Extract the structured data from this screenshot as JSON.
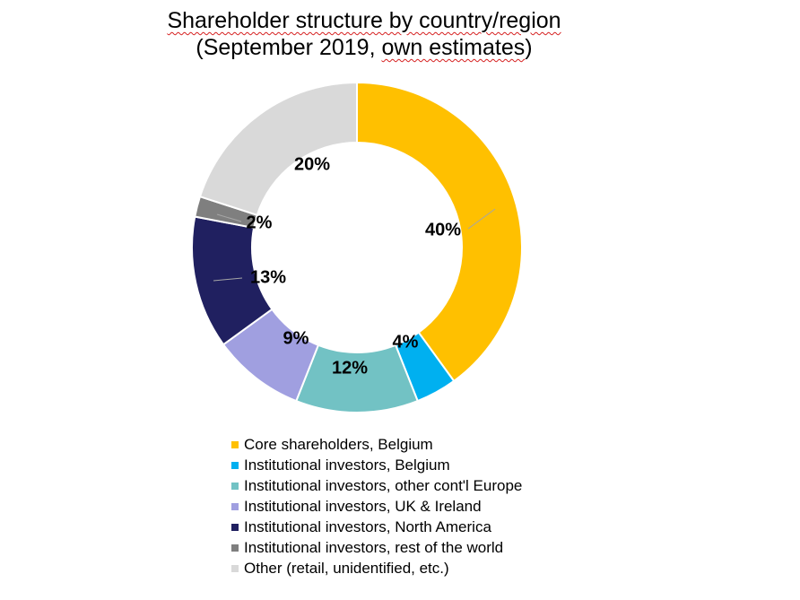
{
  "chart_data": {
    "type": "pie",
    "donut": true,
    "title_line1": "Shareholder structure by country/region",
    "title_line2_pre": "(September 2019, ",
    "title_line2_squig": "own estimates",
    "title_line2_post": ")",
    "slices": [
      {
        "label": "Core shareholders, Belgium",
        "value": 40,
        "value_label": "40%",
        "color": "#FFC000"
      },
      {
        "label": "Institutional investors, Belgium",
        "value": 4,
        "value_label": "4%",
        "color": "#00B0F0"
      },
      {
        "label": "Institutional investors, other cont'l Europe",
        "value": 12,
        "value_label": "12%",
        "color": "#72C2C4"
      },
      {
        "label": "Institutional investors, UK & Ireland",
        "value": 9,
        "value_label": "9%",
        "color": "#A09FE0"
      },
      {
        "label": "Institutional investors, North America",
        "value": 13,
        "value_label": "13%",
        "color": "#202060"
      },
      {
        "label": "Institutional investors, rest of the world",
        "value": 2,
        "value_label": "2%",
        "color": "#7F7F7F"
      },
      {
        "label": "Other (retail, unidentified, etc.)",
        "value": 20,
        "value_label": "20%",
        "color": "#D9D9D9"
      }
    ],
    "legend_position": "bottom"
  }
}
